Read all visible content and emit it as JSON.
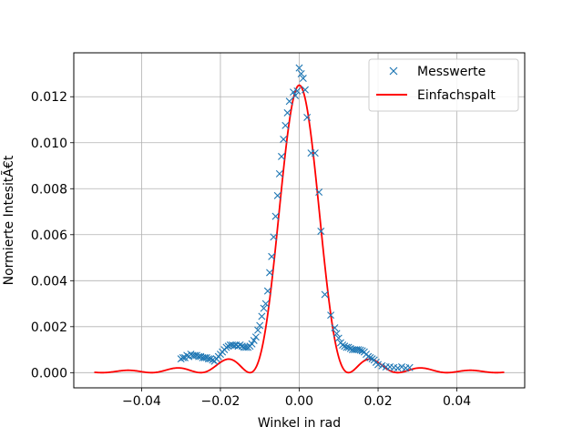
{
  "chart_data": {
    "type": "scatter",
    "xlabel": "Winkel in rad",
    "ylabel": "Normierte IntesitÃ€t",
    "xlim": [
      -0.0572,
      0.0572
    ],
    "ylim": [
      -0.00066,
      0.01391
    ],
    "xticks": [
      -0.04,
      -0.02,
      0.0,
      0.02,
      0.04
    ],
    "xtick_labels": [
      "−0.04",
      "−0.02",
      "0.00",
      "0.02",
      "0.04"
    ],
    "yticks": [
      0.0,
      0.002,
      0.004,
      0.006,
      0.008,
      0.01,
      0.012
    ],
    "ytick_labels": [
      "0.000",
      "0.002",
      "0.004",
      "0.006",
      "0.008",
      "0.010",
      "0.012"
    ],
    "grid": true,
    "legend_position": "upper right",
    "series": [
      {
        "name": "Messwerte",
        "kind": "scatter",
        "marker": "x",
        "color": "#1f77b4",
        "x": [
          -0.03,
          -0.0295,
          -0.029,
          -0.0285,
          -0.028,
          -0.0275,
          -0.027,
          -0.0265,
          -0.026,
          -0.0255,
          -0.025,
          -0.0245,
          -0.024,
          -0.0235,
          -0.023,
          -0.0225,
          -0.022,
          -0.0215,
          -0.021,
          -0.0205,
          -0.02,
          -0.0195,
          -0.019,
          -0.0185,
          -0.018,
          -0.0175,
          -0.017,
          -0.0165,
          -0.016,
          -0.0155,
          -0.015,
          -0.0145,
          -0.014,
          -0.0135,
          -0.013,
          -0.0125,
          -0.012,
          -0.0115,
          -0.011,
          -0.0105,
          -0.01,
          -0.0095,
          -0.009,
          -0.0085,
          -0.008,
          -0.0075,
          -0.007,
          -0.0065,
          -0.006,
          -0.0055,
          -0.005,
          -0.0045,
          -0.004,
          -0.0035,
          -0.003,
          -0.0025,
          -0.0015,
          -0.001,
          -0.0005,
          0.0,
          0.0005,
          0.001,
          0.0015,
          0.002,
          0.003,
          0.004,
          0.005,
          0.0055,
          0.0065,
          0.008,
          0.009,
          0.0095,
          0.01,
          0.0105,
          0.011,
          0.0115,
          0.012,
          0.0125,
          0.013,
          0.0135,
          0.014,
          0.0145,
          0.015,
          0.0155,
          0.016,
          0.0165,
          0.017,
          0.0175,
          0.018,
          0.0185,
          0.019,
          0.0195,
          0.02,
          0.021,
          0.022,
          0.023,
          0.024,
          0.025,
          0.026,
          0.027,
          0.028
        ],
        "y": [
          0.0006,
          0.00065,
          0.00065,
          0.00075,
          0.0007,
          0.0008,
          0.00075,
          0.00075,
          0.00075,
          0.0007,
          0.0007,
          0.00065,
          0.00065,
          0.00065,
          0.0006,
          0.0006,
          0.00055,
          0.0005,
          0.0006,
          0.0007,
          0.0008,
          0.0009,
          0.001,
          0.0011,
          0.00115,
          0.0012,
          0.0012,
          0.00118,
          0.0012,
          0.00115,
          0.0012,
          0.00115,
          0.0011,
          0.0011,
          0.0011,
          0.00115,
          0.00125,
          0.0014,
          0.00155,
          0.00185,
          0.00205,
          0.00245,
          0.0028,
          0.003,
          0.00355,
          0.00435,
          0.00505,
          0.0059,
          0.0068,
          0.0077,
          0.00865,
          0.0094,
          0.01015,
          0.01075,
          0.0113,
          0.0118,
          0.0122,
          0.01205,
          0.01225,
          0.01325,
          0.013,
          0.0128,
          0.0123,
          0.0111,
          0.00955,
          0.00955,
          0.00785,
          0.00615,
          0.0034,
          0.0025,
          0.00195,
          0.0017,
          0.0015,
          0.0013,
          0.0012,
          0.00115,
          0.0011,
          0.0011,
          0.00105,
          0.001,
          0.001,
          0.001,
          0.001,
          0.00098,
          0.00095,
          0.0009,
          0.0008,
          0.0007,
          0.00065,
          0.0006,
          0.00055,
          0.00045,
          0.00035,
          0.0003,
          0.00025,
          0.00025,
          0.00022,
          0.0002,
          0.00025,
          0.0002,
          0.00022
        ]
      },
      {
        "name": "Einfachspalt",
        "kind": "line",
        "color": "#ff0000",
        "model": "single_slit_sinc_squared",
        "amplitude": 0.0125,
        "first_minimum": 0.0125,
        "center": 0.0,
        "x_range": [
          -0.052,
          0.052
        ]
      }
    ]
  }
}
